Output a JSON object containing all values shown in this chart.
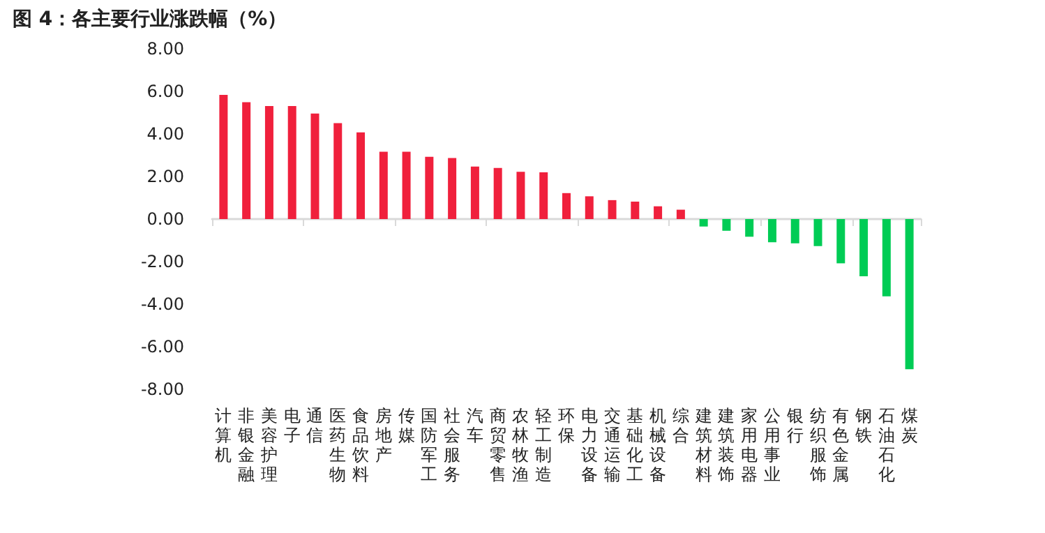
{
  "chart_data": {
    "type": "bar",
    "title": "图 4：各主要行业涨跌幅（%）",
    "categories": [
      "计算机",
      "非银金融",
      "美容护理",
      "电子",
      "通信",
      "医药生物",
      "食品饮料",
      "房地产",
      "传媒",
      "国防军工",
      "社会服务",
      "汽车",
      "商贸零售",
      "农林牧渔",
      "轻工制造",
      "环保",
      "电力设备",
      "交通运输",
      "基础化工",
      "机械设备",
      "综合",
      "建筑材料",
      "建筑装饰",
      "家用电器",
      "公用事业",
      "银行",
      "纺织服饰",
      "有色金属",
      "钢铁",
      "石油石化",
      "煤炭"
    ],
    "values": [
      5.84,
      5.49,
      5.31,
      5.31,
      4.96,
      4.51,
      4.07,
      3.16,
      3.16,
      2.93,
      2.87,
      2.47,
      2.4,
      2.22,
      2.2,
      1.22,
      1.07,
      0.89,
      0.82,
      0.6,
      0.44,
      -0.35,
      -0.55,
      -0.83,
      -1.09,
      -1.14,
      -1.27,
      -2.08,
      -2.69,
      -3.63,
      -7.06
    ],
    "colors": [
      "#f0203c",
      "#f0203c",
      "#f0203c",
      "#f0203c",
      "#f0203c",
      "#f0203c",
      "#f0203c",
      "#f0203c",
      "#f0203c",
      "#f0203c",
      "#f0203c",
      "#f0203c",
      "#f0203c",
      "#f0203c",
      "#f0203c",
      "#f0203c",
      "#f0203c",
      "#f0203c",
      "#f0203c",
      "#f0203c",
      "#f0203c",
      "#00cc55",
      "#00cc55",
      "#00cc55",
      "#00cc55",
      "#00cc55",
      "#00cc55",
      "#00cc55",
      "#00cc55",
      "#00cc55",
      "#00cc55"
    ],
    "ylim": [
      -8,
      8
    ],
    "yticks": [
      {
        "value": -8,
        "label": "-8.00"
      },
      {
        "value": -6,
        "label": "-6.00"
      },
      {
        "value": -4,
        "label": "-4.00"
      },
      {
        "value": -2,
        "label": "-2.00"
      },
      {
        "value": 0,
        "label": "0.00"
      },
      {
        "value": 2,
        "label": "2.00"
      },
      {
        "value": 4,
        "label": "4.00"
      },
      {
        "value": 6,
        "label": "6.00"
      },
      {
        "value": 8,
        "label": "8.00"
      }
    ],
    "tick_labels": true
  }
}
